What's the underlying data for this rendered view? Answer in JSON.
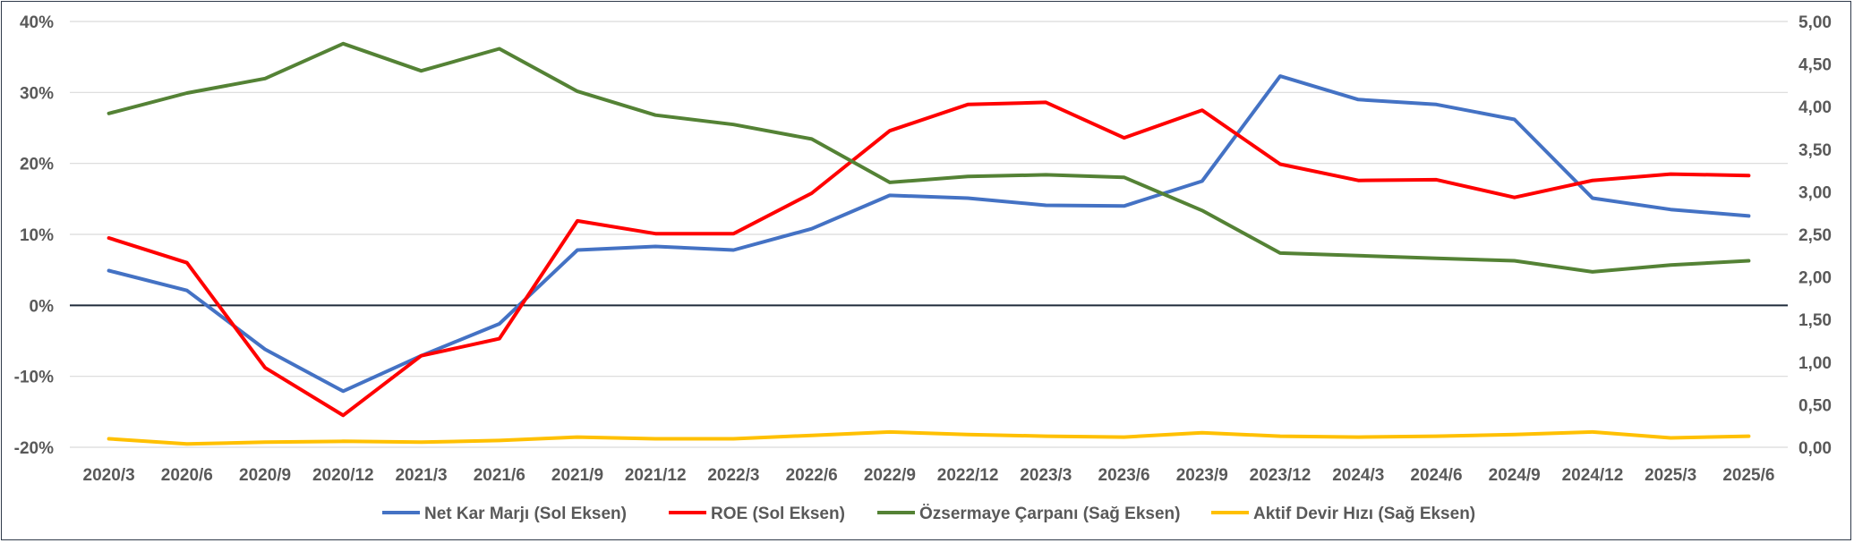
{
  "chart_data": {
    "type": "line",
    "title": "",
    "categories": [
      "2020/3",
      "2020/6",
      "2020/9",
      "2020/12",
      "2021/3",
      "2021/6",
      "2021/9",
      "2021/12",
      "2022/3",
      "2022/6",
      "2022/9",
      "2022/12",
      "2023/3",
      "2023/6",
      "2023/9",
      "2023/12",
      "2024/3",
      "2024/6",
      "2024/9",
      "2024/12",
      "2025/3",
      "2025/6"
    ],
    "left_axis": {
      "ylim": [
        -20,
        40
      ],
      "ticks": [
        -20,
        -10,
        0,
        10,
        20,
        30,
        40
      ],
      "tick_labels": [
        "-20%",
        "-10%",
        "0%",
        "10%",
        "20%",
        "30%",
        "40%"
      ]
    },
    "right_axis": {
      "ylim": [
        0,
        5
      ],
      "ticks": [
        0,
        0.5,
        1,
        1.5,
        2,
        2.5,
        3,
        3.5,
        4,
        4.5,
        5
      ],
      "tick_labels": [
        "0,00",
        "0,50",
        "1,00",
        "1,50",
        "2,00",
        "2,50",
        "3,00",
        "3,50",
        "4,00",
        "4,50",
        "5,00"
      ]
    },
    "grid": true,
    "legend_position": "bottom",
    "series": [
      {
        "name": "Net Kar Marjı (Sol Eksen)",
        "axis": "left",
        "color": "#4472c4",
        "values": [
          4.9,
          2.1,
          -6.2,
          -12.1,
          -7.1,
          -2.6,
          7.8,
          8.3,
          7.8,
          10.8,
          15.5,
          15.1,
          14.1,
          14.0,
          17.5,
          32.3,
          29.0,
          28.3,
          26.2,
          15.1,
          13.5,
          12.6
        ]
      },
      {
        "name": "ROE (Sol Eksen)",
        "axis": "left",
        "color": "#ff0000",
        "values": [
          9.5,
          6.0,
          -8.8,
          -15.5,
          -7.1,
          -4.7,
          11.9,
          10.1,
          10.1,
          15.8,
          24.6,
          28.3,
          28.6,
          23.6,
          27.5,
          19.9,
          17.6,
          17.7,
          15.2,
          17.6,
          18.5,
          18.3
        ]
      },
      {
        "name": "Özsermaye Çarpanı (Sağ Eksen)",
        "axis": "right",
        "color": "#548235",
        "values": [
          3.92,
          4.16,
          4.33,
          4.74,
          4.42,
          4.68,
          4.18,
          3.9,
          3.79,
          3.62,
          3.11,
          3.18,
          3.2,
          3.17,
          2.78,
          2.28,
          2.25,
          2.22,
          2.19,
          2.06,
          2.14,
          2.19
        ]
      },
      {
        "name": "Aktif Devir Hızı (Sağ Eksen)",
        "axis": "right",
        "color": "#ffc000",
        "values": [
          0.1,
          0.04,
          0.06,
          0.07,
          0.06,
          0.08,
          0.12,
          0.1,
          0.1,
          0.14,
          0.18,
          0.15,
          0.13,
          0.12,
          0.17,
          0.13,
          0.12,
          0.13,
          0.15,
          0.18,
          0.11,
          0.13
        ]
      }
    ]
  }
}
